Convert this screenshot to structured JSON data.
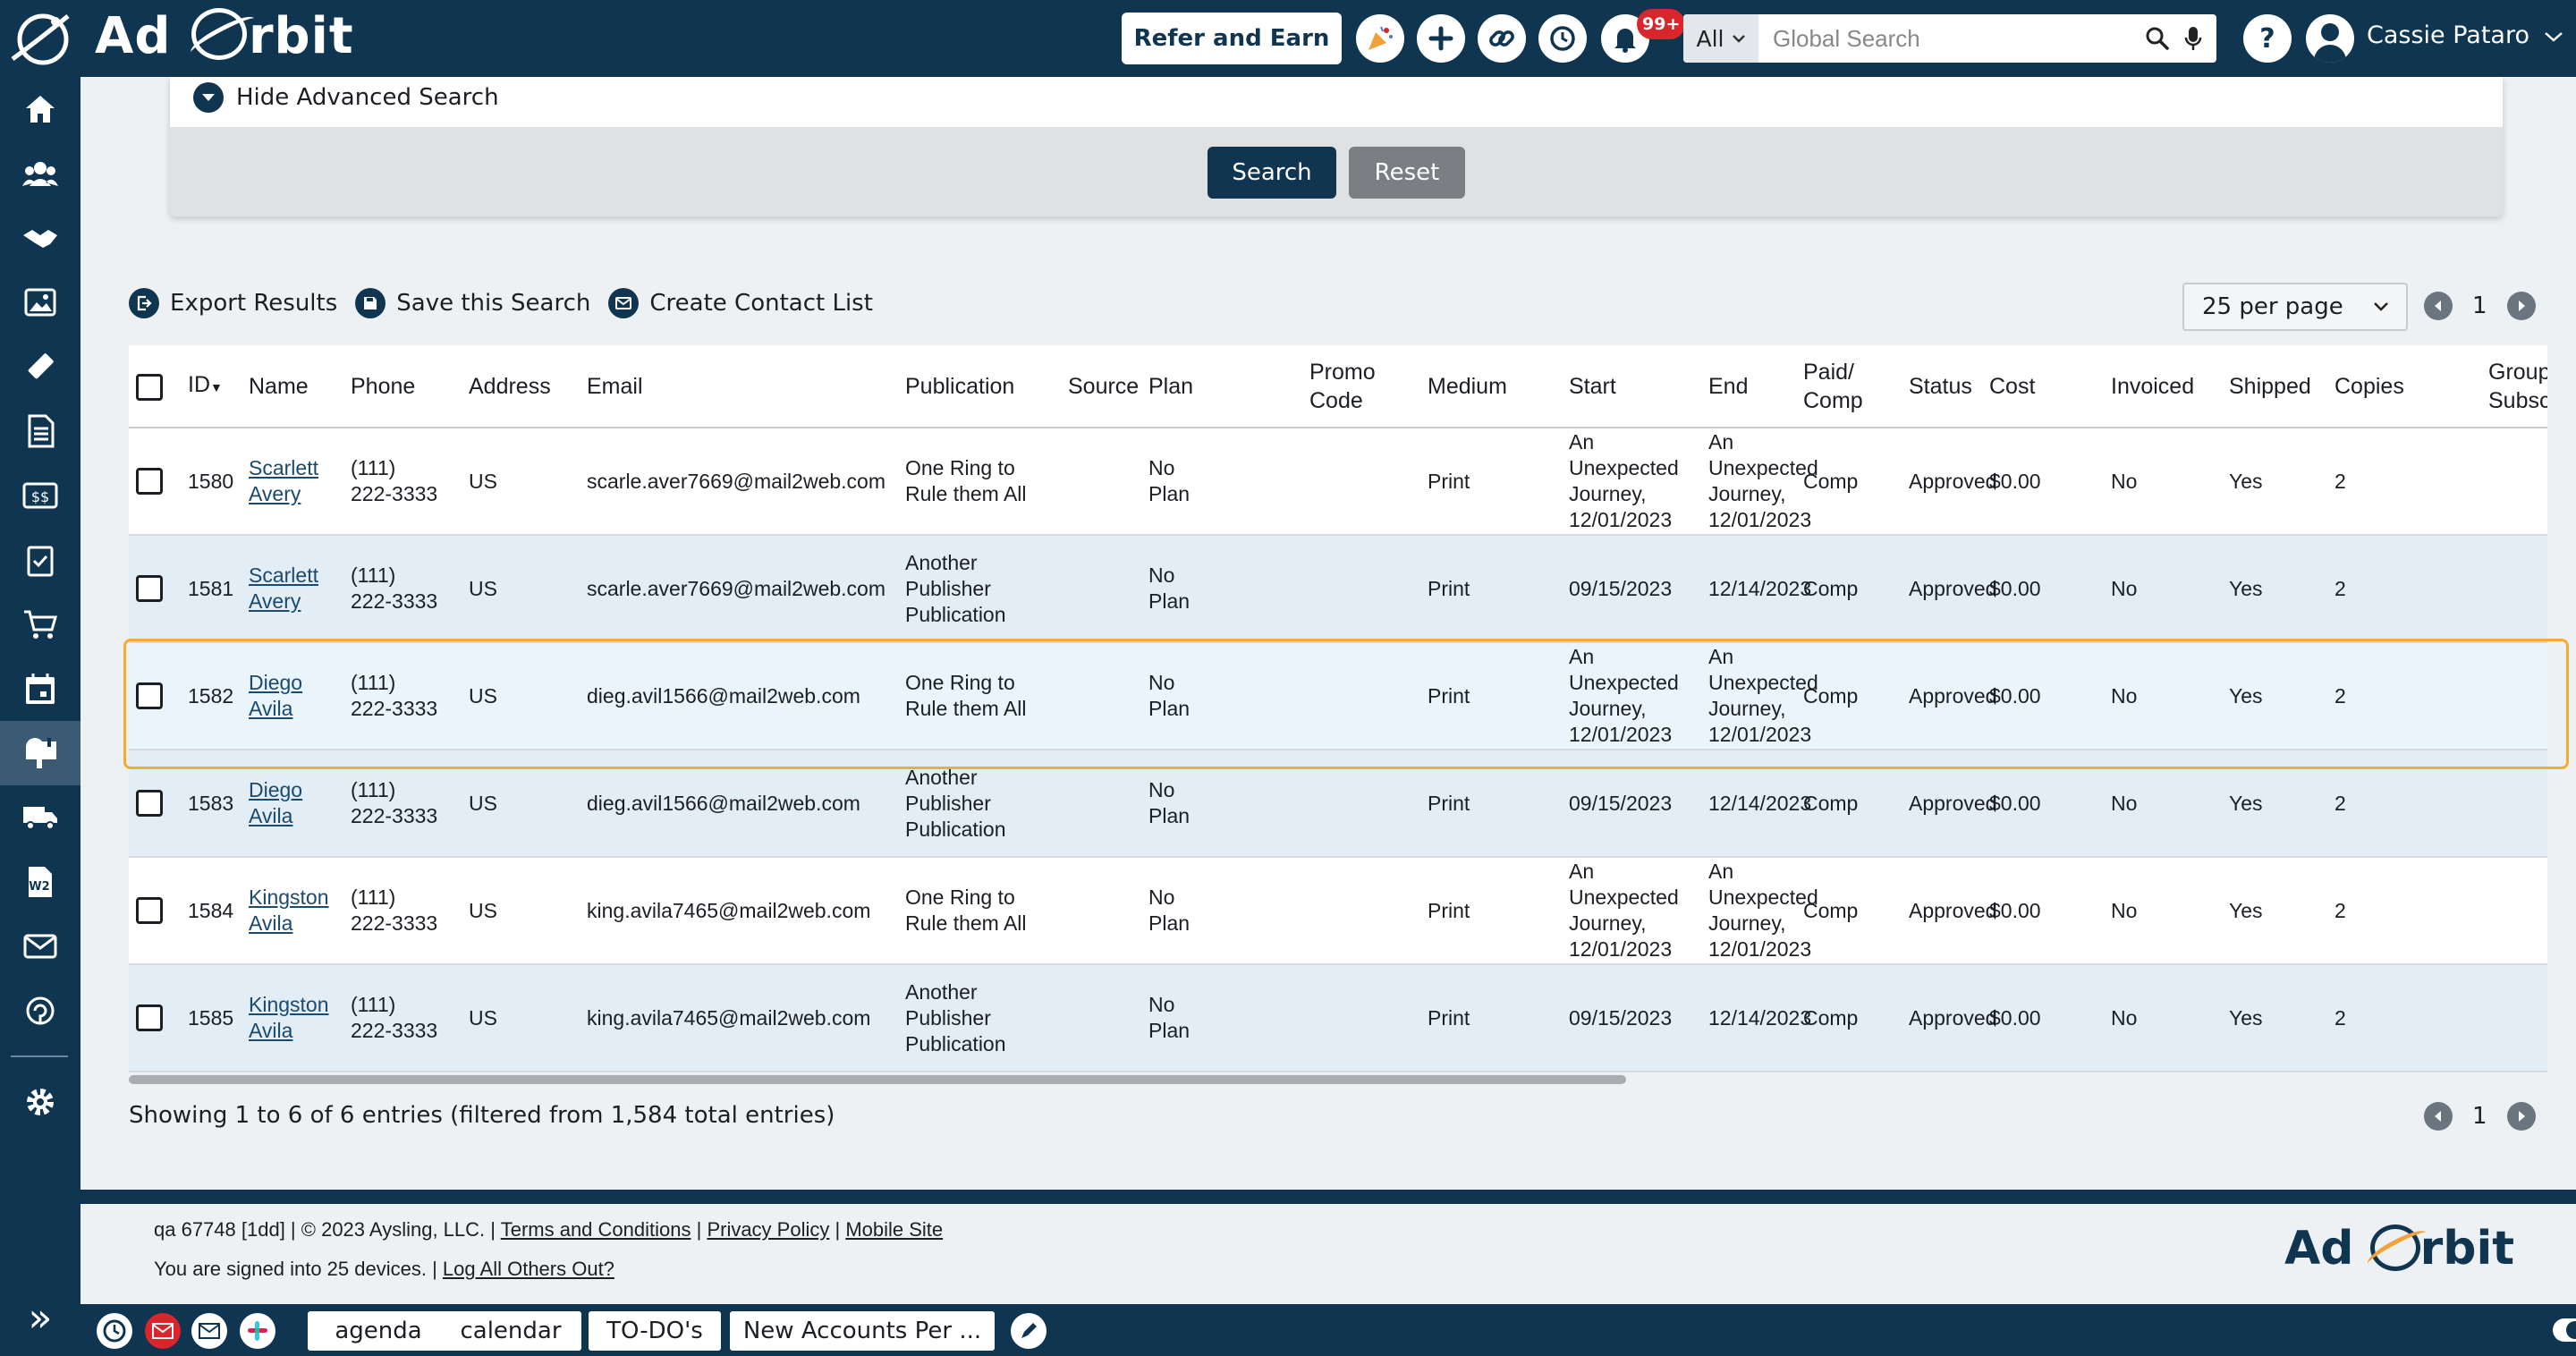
{
  "header": {
    "brand": "Ad Orbit",
    "brand_prefix": "Ad",
    "brand_suffix": "rbit",
    "refer_label": "Refer and Earn",
    "notification_count": "99+",
    "search_scope": "All",
    "search_placeholder": "Global Search",
    "user_name": "Cassie Pataro",
    "icons": [
      "celebration-icon",
      "plus-icon",
      "link-icon",
      "history-icon",
      "bell-icon",
      "search-icon",
      "microphone-icon",
      "help-icon",
      "user-icon"
    ]
  },
  "sidebar": {
    "items": [
      "home-icon",
      "contacts-icon",
      "deals-icon",
      "media-icon",
      "tickets-icon",
      "documents-icon",
      "billing-icon",
      "tasks-icon",
      "cart-icon",
      "calendar-icon",
      "mailbox-icon",
      "delivery-icon",
      "w2-icon",
      "email-icon",
      "support-icon",
      "settings-icon"
    ],
    "active": "mailbox-icon"
  },
  "advanced_search": {
    "toggle_label": "Hide Advanced Search",
    "search_label": "Search",
    "reset_label": "Reset"
  },
  "actions": {
    "export_label": "Export Results",
    "save_label": "Save this Search",
    "contact_list_label": "Create Contact List",
    "per_page": "25 per page",
    "page": "1"
  },
  "table": {
    "columns": {
      "id": "ID",
      "name": "Name",
      "phone": "Phone",
      "address": "Address",
      "email": "Email",
      "publication": "Publication",
      "source": "Source",
      "plan": "Plan",
      "promo": "Promo Code",
      "medium": "Medium",
      "start": "Start",
      "end": "End",
      "paid1": "Paid/",
      "paid2": "Comp",
      "status": "Status",
      "cost": "Cost",
      "invoiced": "Invoiced",
      "shipped": "Shipped",
      "copies": "Copies",
      "group1": "Group",
      "group2": "Subscription"
    },
    "rows": [
      {
        "id": "1580",
        "first": "Scarlett",
        "last": "Avery",
        "phone1": "(111)",
        "phone2": "222-3333",
        "address": "US",
        "email": "scarle.aver7669@mail2web.com",
        "pub": [
          "One Ring to",
          "Rule them All",
          ""
        ],
        "source": "",
        "plan1": "No",
        "plan2": "Plan",
        "promo": "",
        "medium": "Print",
        "start": [
          "An",
          "Unexpected",
          "Journey,",
          "12/01/2023"
        ],
        "end": [
          "An",
          "Unexpected",
          "Journey,",
          "12/01/2023"
        ],
        "paid": "Comp",
        "status": "Approved",
        "cost": "$0.00",
        "invoiced": "No",
        "shipped": "Yes",
        "copies": "2",
        "group": ""
      },
      {
        "id": "1581",
        "first": "Scarlett",
        "last": "Avery",
        "phone1": "(111)",
        "phone2": "222-3333",
        "address": "US",
        "email": "scarle.aver7669@mail2web.com",
        "pub": [
          "Another",
          "Publisher",
          "Publication"
        ],
        "source": "",
        "plan1": "No",
        "plan2": "Plan",
        "promo": "",
        "medium": "Print",
        "start": [
          "09/15/2023",
          "",
          "",
          ""
        ],
        "end": [
          "12/14/2023",
          "",
          "",
          ""
        ],
        "paid": "Comp",
        "status": "Approved",
        "cost": "$0.00",
        "invoiced": "No",
        "shipped": "Yes",
        "copies": "2",
        "group": ""
      },
      {
        "id": "1582",
        "first": "Diego",
        "last": "Avila",
        "phone1": "(111)",
        "phone2": "222-3333",
        "address": "US",
        "email": "dieg.avil1566@mail2web.com",
        "pub": [
          "One Ring to",
          "Rule them All",
          ""
        ],
        "source": "",
        "plan1": "No",
        "plan2": "Plan",
        "promo": "",
        "medium": "Print",
        "start": [
          "An",
          "Unexpected",
          "Journey,",
          "12/01/2023"
        ],
        "end": [
          "An",
          "Unexpected",
          "Journey,",
          "12/01/2023"
        ],
        "paid": "Comp",
        "status": "Approved",
        "cost": "$0.00",
        "invoiced": "No",
        "shipped": "Yes",
        "copies": "2",
        "group": ""
      },
      {
        "id": "1583",
        "first": "Diego",
        "last": "Avila",
        "phone1": "(111)",
        "phone2": "222-3333",
        "address": "US",
        "email": "dieg.avil1566@mail2web.com",
        "pub": [
          "Another",
          "Publisher",
          "Publication"
        ],
        "source": "",
        "plan1": "No",
        "plan2": "Plan",
        "promo": "",
        "medium": "Print",
        "start": [
          "09/15/2023",
          "",
          "",
          ""
        ],
        "end": [
          "12/14/2023",
          "",
          "",
          ""
        ],
        "paid": "Comp",
        "status": "Approved",
        "cost": "$0.00",
        "invoiced": "No",
        "shipped": "Yes",
        "copies": "2",
        "group": ""
      },
      {
        "id": "1584",
        "first": "Kingston",
        "last": "Avila",
        "phone1": "(111)",
        "phone2": "222-3333",
        "address": "US",
        "email": "king.avila7465@mail2web.com",
        "pub": [
          "One Ring to",
          "Rule them All",
          ""
        ],
        "source": "",
        "plan1": "No",
        "plan2": "Plan",
        "promo": "",
        "medium": "Print",
        "start": [
          "An",
          "Unexpected",
          "Journey,",
          "12/01/2023"
        ],
        "end": [
          "An",
          "Unexpected",
          "Journey,",
          "12/01/2023"
        ],
        "paid": "Comp",
        "status": "Approved",
        "cost": "$0.00",
        "invoiced": "No",
        "shipped": "Yes",
        "copies": "2",
        "group": ""
      },
      {
        "id": "1585",
        "first": "Kingston",
        "last": "Avila",
        "phone1": "(111)",
        "phone2": "222-3333",
        "address": "US",
        "email": "king.avila7465@mail2web.com",
        "pub": [
          "Another",
          "Publisher",
          "Publication"
        ],
        "source": "",
        "plan1": "No",
        "plan2": "Plan",
        "promo": "",
        "medium": "Print",
        "start": [
          "09/15/2023",
          "",
          "",
          ""
        ],
        "end": [
          "12/14/2023",
          "",
          "",
          ""
        ],
        "paid": "Comp",
        "status": "Approved",
        "cost": "$0.00",
        "invoiced": "No",
        "shipped": "Yes",
        "copies": "2",
        "group": ""
      }
    ],
    "showing": "Showing 1 to 6 of 6 entries (filtered from 1,584 total entries)"
  },
  "footer": {
    "build": "qa 67748 [1dd]",
    "copyright": "© 2023 Aysling, LLC.",
    "terms": "Terms and Conditions",
    "privacy": "Privacy Policy",
    "mobile": "Mobile Site",
    "devices": "You are signed into 25 devices.",
    "logout_others": "Log All Others Out?"
  },
  "taskbar": {
    "tabs": [
      "agenda",
      "calendar",
      "TO-DO's",
      "New Accounts Per ..."
    ]
  },
  "colors": {
    "navy": "#0f3550",
    "highlight": "#f0ad32",
    "row_alt": "#e3edf6"
  }
}
